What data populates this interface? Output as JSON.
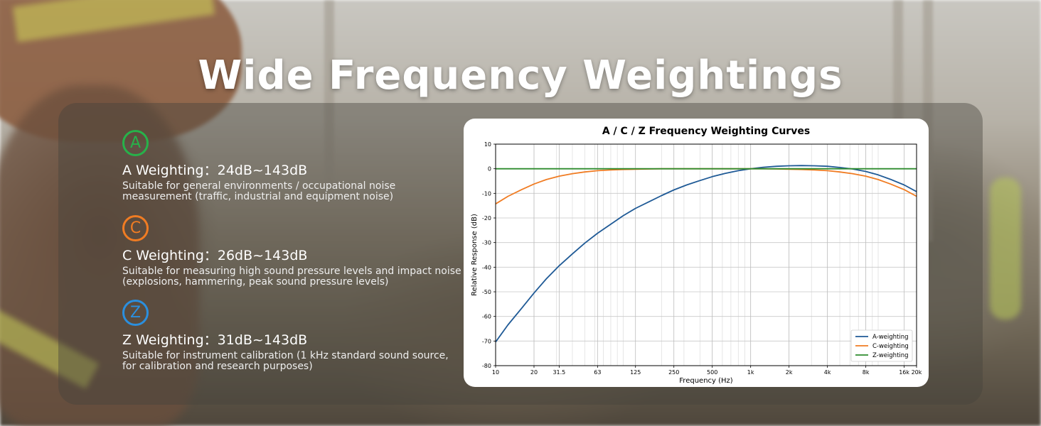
{
  "title": "Wide Frequency Weightings",
  "weightings": [
    {
      "letter": "A",
      "color": "#27b24a",
      "heading": "A Weighting：24dB~143dB",
      "description": "Suitable for general environments / occupational noise measurement (traffic, industrial and equipment noise)"
    },
    {
      "letter": "C",
      "color": "#f07c23",
      "heading": "C Weighting：26dB~143dB",
      "description": "Suitable for measuring high sound pressure levels and impact noise (explosions, hammering, peak sound pressure levels)"
    },
    {
      "letter": "Z",
      "color": "#2b8fde",
      "heading": "Z Weighting：31dB~143dB",
      "description": "Suitable for instrument calibration (1 kHz standard sound source, for calibration and research purposes)"
    }
  ],
  "chart_data": {
    "type": "line",
    "title": "A / C / Z Frequency Weighting Curves",
    "xlabel": "Frequency (Hz)",
    "ylabel": "Relative Response (dB)",
    "xscale": "log",
    "xlim": [
      10,
      20000
    ],
    "ylim": [
      -80,
      10
    ],
    "grid": true,
    "legend_position": "bottom-right",
    "x_ticks": [
      {
        "value": 10,
        "label": "10"
      },
      {
        "value": 20,
        "label": "20"
      },
      {
        "value": 31.5,
        "label": "31.5"
      },
      {
        "value": 63,
        "label": "63"
      },
      {
        "value": 125,
        "label": "125"
      },
      {
        "value": 250,
        "label": "250"
      },
      {
        "value": 500,
        "label": "500"
      },
      {
        "value": 1000,
        "label": "1k"
      },
      {
        "value": 2000,
        "label": "2k"
      },
      {
        "value": 4000,
        "label": "4k"
      },
      {
        "value": 8000,
        "label": "8k"
      },
      {
        "value": 16000,
        "label": "16k"
      },
      {
        "value": 20000,
        "label": "20k"
      }
    ],
    "y_ticks": [
      10,
      0,
      -10,
      -20,
      -30,
      -40,
      -50,
      -60,
      -70,
      -80
    ],
    "x": [
      10,
      12.5,
      16,
      20,
      25,
      31.5,
      40,
      50,
      63,
      80,
      100,
      125,
      160,
      200,
      250,
      315,
      400,
      500,
      630,
      800,
      1000,
      1250,
      1600,
      2000,
      2500,
      3150,
      4000,
      5000,
      6300,
      8000,
      10000,
      12500,
      16000,
      20000
    ],
    "series": [
      {
        "name": "A-weighting",
        "color": "#1f5a96",
        "values": [
          -70.4,
          -63.4,
          -56.7,
          -50.5,
          -44.7,
          -39.4,
          -34.6,
          -30.2,
          -26.2,
          -22.5,
          -19.1,
          -16.1,
          -13.4,
          -10.9,
          -8.6,
          -6.6,
          -4.8,
          -3.2,
          -1.9,
          -0.8,
          0.0,
          0.6,
          1.0,
          1.2,
          1.3,
          1.2,
          1.0,
          0.5,
          -0.1,
          -1.1,
          -2.5,
          -4.3,
          -6.6,
          -9.3
        ]
      },
      {
        "name": "C-weighting",
        "color": "#f07c23",
        "values": [
          -14.3,
          -11.2,
          -8.5,
          -6.2,
          -4.4,
          -3.0,
          -2.0,
          -1.3,
          -0.8,
          -0.5,
          -0.3,
          -0.2,
          -0.1,
          0.0,
          0.0,
          0.0,
          0.0,
          0.0,
          0.0,
          0.0,
          0.0,
          0.0,
          -0.1,
          -0.2,
          -0.3,
          -0.5,
          -0.8,
          -1.3,
          -2.0,
          -3.0,
          -4.4,
          -6.2,
          -8.5,
          -11.2
        ]
      },
      {
        "name": "Z-weighting",
        "color": "#2e8b2e",
        "values": [
          0,
          0,
          0,
          0,
          0,
          0,
          0,
          0,
          0,
          0,
          0,
          0,
          0,
          0,
          0,
          0,
          0,
          0,
          0,
          0,
          0,
          0,
          0,
          0,
          0,
          0,
          0,
          0,
          0,
          0,
          0,
          0,
          0,
          0
        ]
      }
    ]
  }
}
